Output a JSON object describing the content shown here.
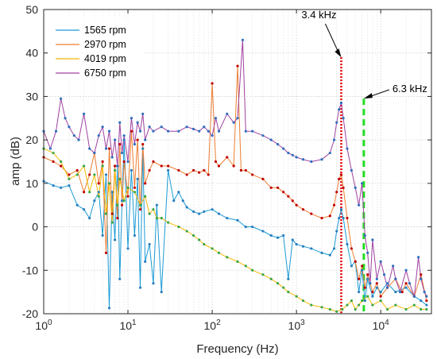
{
  "chart_data": {
    "type": "line",
    "title": "",
    "xlabel": "Frequency (Hz)",
    "ylabel": "amp (dB)",
    "xscale": "log",
    "xlim": [
      1,
      40000
    ],
    "ylim": [
      -20,
      50
    ],
    "x_ticks": [
      {
        "value": 1,
        "base": "10",
        "exp": "0"
      },
      {
        "value": 10,
        "base": "10",
        "exp": "1"
      },
      {
        "value": 100,
        "base": "10",
        "exp": "2"
      },
      {
        "value": 1000,
        "base": "10",
        "exp": "3"
      },
      {
        "value": 10000,
        "base": "10",
        "exp": "4"
      }
    ],
    "y_ticks": [
      "-20",
      "-10",
      "0",
      "10",
      "20",
      "30",
      "40",
      "50"
    ],
    "grid": true,
    "legend_position": "top-left",
    "series": [
      {
        "name": "1565 rpm",
        "line_color": "#1a9ad6",
        "marker_color": "#2a7fc0",
        "points": [
          [
            1,
            10.5
          ],
          [
            1.3,
            9.5
          ],
          [
            1.6,
            9
          ],
          [
            2,
            9.5
          ],
          [
            2.5,
            5
          ],
          [
            3,
            4
          ],
          [
            3.5,
            2
          ],
          [
            4,
            6
          ],
          [
            4.5,
            8
          ],
          [
            5,
            -2
          ],
          [
            5.5,
            12
          ],
          [
            6,
            -18.7
          ],
          [
            6.5,
            8
          ],
          [
            7,
            -3
          ],
          [
            7.5,
            14
          ],
          [
            8,
            -12
          ],
          [
            8.5,
            6
          ],
          [
            9,
            20
          ],
          [
            10,
            -5
          ],
          [
            11,
            13
          ],
          [
            12,
            -2
          ],
          [
            13,
            11
          ],
          [
            14,
            -14
          ],
          [
            15,
            18
          ],
          [
            16,
            -8
          ],
          [
            18,
            -4
          ],
          [
            20,
            -13
          ],
          [
            22,
            5
          ],
          [
            25,
            -15
          ],
          [
            30,
            13
          ],
          [
            35,
            6
          ],
          [
            40,
            8
          ],
          [
            45,
            6
          ],
          [
            50,
            4.5
          ],
          [
            60,
            3.5
          ],
          [
            70,
            3
          ],
          [
            80,
            3.5
          ],
          [
            100,
            4
          ],
          [
            120,
            3
          ],
          [
            150,
            2
          ],
          [
            200,
            1.5
          ],
          [
            250,
            0
          ],
          [
            300,
            0
          ],
          [
            400,
            -1
          ],
          [
            500,
            -2
          ],
          [
            600,
            -2.5
          ],
          [
            700,
            -2
          ],
          [
            800,
            -12
          ],
          [
            900,
            -3
          ],
          [
            1000,
            -4
          ],
          [
            1200,
            -4.5
          ],
          [
            1500,
            -5
          ],
          [
            2000,
            -6
          ],
          [
            2500,
            -6.5
          ],
          [
            2800,
            -5
          ],
          [
            3000,
            -1
          ],
          [
            3200,
            2
          ],
          [
            3400,
            4
          ],
          [
            3600,
            2
          ],
          [
            4000,
            -4
          ],
          [
            4500,
            -9
          ],
          [
            5000,
            -8
          ],
          [
            5500,
            -15
          ],
          [
            6000,
            -10
          ],
          [
            6500,
            -17
          ],
          [
            7000,
            -12
          ],
          [
            8000,
            -16
          ],
          [
            9000,
            -14
          ],
          [
            10000,
            -15
          ],
          [
            12000,
            -13
          ],
          [
            15000,
            -15
          ],
          [
            20000,
            -14
          ],
          [
            25000,
            -16
          ],
          [
            30000,
            -17
          ],
          [
            35000,
            -18
          ]
        ]
      },
      {
        "name": "2970 rpm",
        "line_color": "#ed7d31",
        "marker_color": "#c00000",
        "points": [
          [
            1,
            16
          ],
          [
            1.3,
            15
          ],
          [
            1.6,
            14
          ],
          [
            2,
            12
          ],
          [
            2.5,
            13
          ],
          [
            3,
            8
          ],
          [
            3.5,
            12
          ],
          [
            4,
            17
          ],
          [
            4.5,
            10
          ],
          [
            5,
            15
          ],
          [
            5.5,
            -6
          ],
          [
            6,
            18
          ],
          [
            6.5,
            3
          ],
          [
            7,
            14
          ],
          [
            7.5,
            2
          ],
          [
            8,
            19
          ],
          [
            8.5,
            5
          ],
          [
            9,
            15
          ],
          [
            10,
            7
          ],
          [
            11,
            22
          ],
          [
            12,
            9
          ],
          [
            13,
            20
          ],
          [
            14,
            4
          ],
          [
            15,
            19
          ],
          [
            16,
            10
          ],
          [
            18,
            13
          ],
          [
            20,
            15
          ],
          [
            25,
            14
          ],
          [
            30,
            14
          ],
          [
            40,
            13
          ],
          [
            50,
            12
          ],
          [
            60,
            13
          ],
          [
            70,
            12.5
          ],
          [
            80,
            13
          ],
          [
            90,
            12
          ],
          [
            100,
            33
          ],
          [
            110,
            15
          ],
          [
            120,
            14
          ],
          [
            150,
            16
          ],
          [
            180,
            14
          ],
          [
            200,
            37
          ],
          [
            220,
            13
          ],
          [
            250,
            13
          ],
          [
            300,
            12
          ],
          [
            400,
            11
          ],
          [
            500,
            9
          ],
          [
            600,
            9
          ],
          [
            700,
            8
          ],
          [
            800,
            7
          ],
          [
            900,
            6
          ],
          [
            1000,
            5
          ],
          [
            1200,
            4
          ],
          [
            1500,
            3
          ],
          [
            2000,
            2
          ],
          [
            2500,
            2.5
          ],
          [
            2800,
            5
          ],
          [
            3000,
            8
          ],
          [
            3200,
            11
          ],
          [
            3400,
            12
          ],
          [
            3600,
            9
          ],
          [
            4000,
            2
          ],
          [
            4500,
            -5
          ],
          [
            5000,
            -8
          ],
          [
            5500,
            -12
          ],
          [
            6000,
            -9
          ],
          [
            6500,
            -14
          ],
          [
            7000,
            -11
          ],
          [
            8000,
            -15
          ],
          [
            9000,
            -13
          ],
          [
            10000,
            -16
          ],
          [
            12000,
            -14
          ],
          [
            15000,
            -12
          ],
          [
            18000,
            -15
          ],
          [
            20000,
            -13
          ],
          [
            25000,
            -16
          ],
          [
            30000,
            -11
          ],
          [
            35000,
            -17
          ]
        ]
      },
      {
        "name": "4019 rpm",
        "line_color": "#f5b800",
        "marker_color": "#3aa64a",
        "points": [
          [
            1,
            18
          ],
          [
            1.3,
            17
          ],
          [
            1.6,
            15
          ],
          [
            2,
            11
          ],
          [
            2.5,
            12
          ],
          [
            3,
            14
          ],
          [
            3.5,
            8
          ],
          [
            4,
            12
          ],
          [
            4.5,
            7
          ],
          [
            5,
            14
          ],
          [
            5.5,
            3
          ],
          [
            6,
            10
          ],
          [
            6.5,
            1
          ],
          [
            7,
            13
          ],
          [
            7.5,
            5
          ],
          [
            8,
            11
          ],
          [
            9,
            6
          ],
          [
            10,
            9
          ],
          [
            12,
            8
          ],
          [
            14,
            5
          ],
          [
            16,
            7
          ],
          [
            18,
            3
          ],
          [
            20,
            4
          ],
          [
            22,
            2
          ],
          [
            25,
            2
          ],
          [
            30,
            1
          ],
          [
            40,
            0
          ],
          [
            50,
            -1
          ],
          [
            60,
            -2
          ],
          [
            70,
            -3
          ],
          [
            80,
            -4
          ],
          [
            100,
            -5
          ],
          [
            120,
            -6
          ],
          [
            150,
            -7
          ],
          [
            200,
            -8
          ],
          [
            250,
            -9
          ],
          [
            300,
            -10
          ],
          [
            400,
            -11
          ],
          [
            500,
            -12
          ],
          [
            600,
            -13
          ],
          [
            700,
            -14
          ],
          [
            800,
            -15
          ],
          [
            1000,
            -16
          ],
          [
            1200,
            -17
          ],
          [
            1500,
            -18
          ],
          [
            2000,
            -18.5
          ],
          [
            2500,
            -19
          ],
          [
            3000,
            -19.5
          ],
          [
            3500,
            -19
          ],
          [
            4000,
            -18
          ],
          [
            4500,
            -17
          ],
          [
            5000,
            -19
          ],
          [
            5500,
            -18
          ],
          [
            6000,
            -17
          ],
          [
            7000,
            -16
          ],
          [
            8000,
            -18
          ],
          [
            10000,
            -17
          ],
          [
            12000,
            -19
          ],
          [
            15000,
            -18
          ],
          [
            20000,
            -19
          ],
          [
            25000,
            -18
          ],
          [
            30000,
            -19
          ],
          [
            35000,
            -19
          ]
        ]
      },
      {
        "name": "6750 rpm",
        "line_color": "#a040a0",
        "marker_color": "#2f6fbf",
        "points": [
          [
            1,
            22
          ],
          [
            1.2,
            18
          ],
          [
            1.4,
            22
          ],
          [
            1.6,
            29.5
          ],
          [
            1.8,
            25
          ],
          [
            2,
            23
          ],
          [
            2.3,
            21
          ],
          [
            2.6,
            20
          ],
          [
            3,
            26
          ],
          [
            3.5,
            18
          ],
          [
            4,
            17
          ],
          [
            4.5,
            21
          ],
          [
            5,
            23
          ],
          [
            5.5,
            18
          ],
          [
            6,
            22
          ],
          [
            6.5,
            16
          ],
          [
            7,
            20
          ],
          [
            7.5,
            14
          ],
          [
            8,
            24
          ],
          [
            8.5,
            17
          ],
          [
            9,
            21
          ],
          [
            10,
            15
          ],
          [
            11,
            25
          ],
          [
            12,
            19
          ],
          [
            13,
            24
          ],
          [
            14,
            22
          ],
          [
            15,
            26
          ],
          [
            16,
            20
          ],
          [
            18,
            23
          ],
          [
            20,
            22
          ],
          [
            25,
            23
          ],
          [
            30,
            22
          ],
          [
            40,
            22
          ],
          [
            50,
            23
          ],
          [
            60,
            22.5
          ],
          [
            70,
            22
          ],
          [
            80,
            23
          ],
          [
            90,
            22
          ],
          [
            100,
            21
          ],
          [
            110,
            25
          ],
          [
            120,
            22
          ],
          [
            150,
            26
          ],
          [
            180,
            24
          ],
          [
            200,
            25
          ],
          [
            230,
            43
          ],
          [
            250,
            22
          ],
          [
            300,
            22
          ],
          [
            400,
            21
          ],
          [
            500,
            20
          ],
          [
            600,
            19
          ],
          [
            700,
            18
          ],
          [
            800,
            17
          ],
          [
            900,
            16.5
          ],
          [
            1000,
            16
          ],
          [
            1200,
            15.5
          ],
          [
            1500,
            15
          ],
          [
            2000,
            15.5
          ],
          [
            2500,
            17
          ],
          [
            2800,
            20
          ],
          [
            3000,
            24
          ],
          [
            3200,
            27
          ],
          [
            3400,
            28.5
          ],
          [
            3600,
            25
          ],
          [
            4000,
            18
          ],
          [
            4500,
            13
          ],
          [
            5000,
            9
          ],
          [
            5500,
            5
          ],
          [
            6000,
            10
          ],
          [
            6500,
            -2
          ],
          [
            7000,
            -6
          ],
          [
            7500,
            -13
          ],
          [
            8000,
            -3
          ],
          [
            9000,
            -12
          ],
          [
            10000,
            -8
          ],
          [
            11000,
            -11
          ],
          [
            12000,
            -14
          ],
          [
            14000,
            -9
          ],
          [
            15000,
            -12
          ],
          [
            17000,
            -15
          ],
          [
            20000,
            -10
          ],
          [
            22000,
            -13
          ],
          [
            25000,
            -16
          ],
          [
            28000,
            -7
          ],
          [
            30000,
            -12
          ],
          [
            33000,
            -15
          ],
          [
            35000,
            -16
          ]
        ]
      }
    ],
    "annotations": [
      {
        "label": "3.4 kHz",
        "x": 3400,
        "y": 39,
        "line_color": "#e00000",
        "line_style": "dotted"
      },
      {
        "label": "6.3 kHz",
        "x": 6300,
        "y": 29.5,
        "line_color": "#22dd22",
        "line_style": "dashed"
      }
    ]
  }
}
